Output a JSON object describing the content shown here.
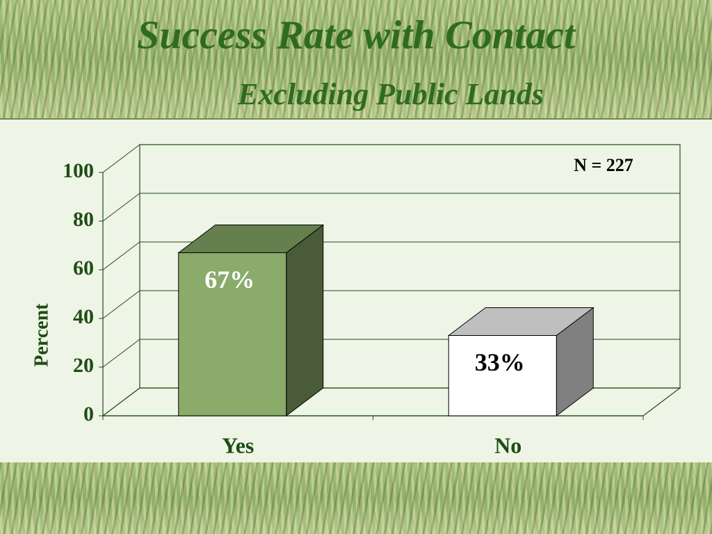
{
  "chart_data": {
    "type": "bar3d",
    "title": "Success Rate with Contact",
    "subtitle": "Excluding Public Lands",
    "y_label": "Percent",
    "annotation": "N = 227",
    "categories": [
      "Yes",
      "No"
    ],
    "values": [
      67,
      33
    ],
    "value_labels": [
      "67%",
      "33%"
    ],
    "colors": [
      "#8aab6a",
      "#ffffff"
    ],
    "ylim": [
      0,
      100
    ],
    "yticks": [
      0,
      20,
      40,
      60,
      80,
      100
    ],
    "grid": true
  }
}
